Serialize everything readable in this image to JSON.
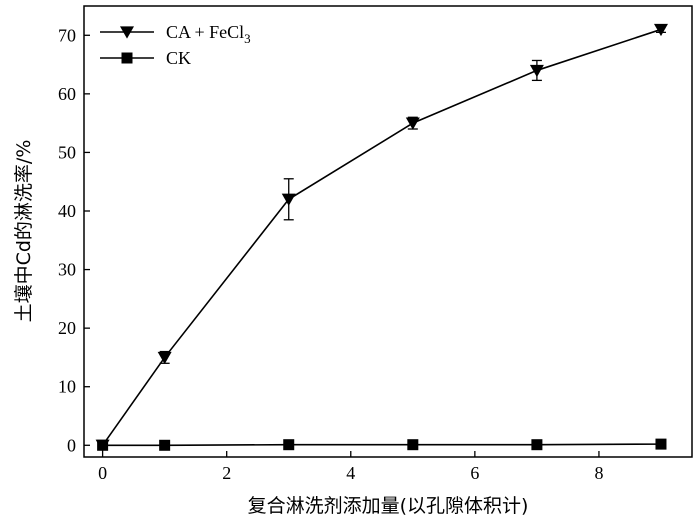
{
  "chart_data": {
    "type": "line",
    "title": "",
    "xlabel": "复合淋洗剂添加量(以孔隙体积计)",
    "ylabel": "土壤中Cd的淋洗率/%",
    "xlim": [
      -0.3,
      9.5
    ],
    "ylim": [
      -2,
      75
    ],
    "x_ticks": [
      0,
      2,
      4,
      6,
      8
    ],
    "y_ticks": [
      0,
      10,
      20,
      30,
      40,
      50,
      60,
      70
    ],
    "grid": false,
    "legend_position": "top-left",
    "series": [
      {
        "name": "CA + FeCl3",
        "legend_main": "CA + FeCl",
        "legend_sub": "3",
        "marker": "triangle-down",
        "color": "#000000",
        "x": [
          0,
          1,
          3,
          5,
          7,
          9
        ],
        "y": [
          0,
          15,
          42,
          55,
          64,
          71
        ],
        "error": [
          0,
          1.0,
          3.5,
          1.0,
          1.7,
          0.5
        ]
      },
      {
        "name": "CK",
        "legend_main": "CK",
        "legend_sub": "",
        "marker": "square",
        "color": "#000000",
        "x": [
          0,
          1,
          3,
          5,
          7,
          9
        ],
        "y": [
          0,
          0,
          0.1,
          0.1,
          0.1,
          0.2
        ],
        "error": [
          0,
          0,
          0,
          0,
          0,
          0
        ]
      }
    ]
  }
}
